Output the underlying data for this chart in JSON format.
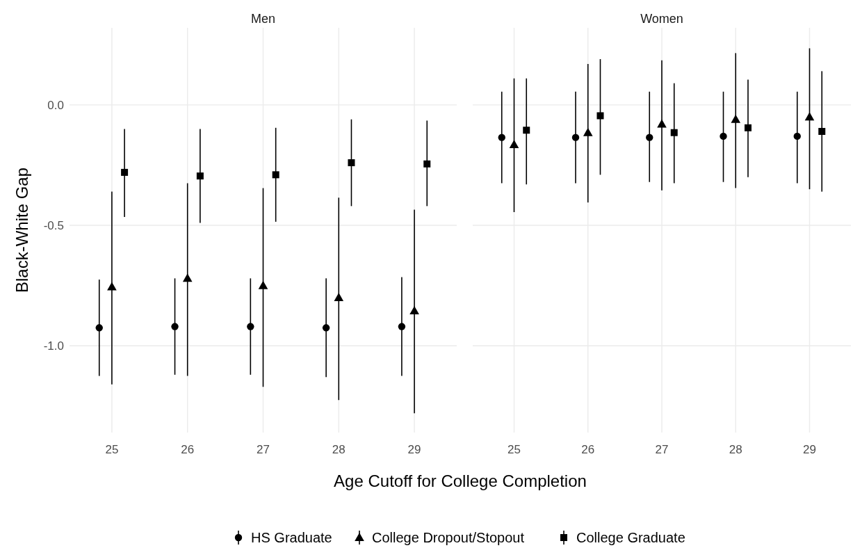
{
  "chart_data": [
    {
      "type": "scatter",
      "title": "Men",
      "ylabel": "Black-White Gap",
      "xlabel": "Age Cutoff for College Completion",
      "categories": [
        "25",
        "26",
        "27",
        "28",
        "29"
      ],
      "ylim": [
        -1.36,
        0.32
      ],
      "yticks": [
        {
          "value": -1,
          "label": "-1.0"
        },
        {
          "value": -0.5,
          "label": "-0.5"
        },
        {
          "value": 0,
          "label": "0.0"
        }
      ],
      "grid": true,
      "legend": "bottom",
      "series": [
        {
          "name": "HS Graduate",
          "color": "#000000",
          "marker": "circle",
          "values": [
            -0.925,
            -0.92,
            -0.92,
            -0.925,
            -0.92
          ],
          "errors": [
            [
              -1.125,
              -0.725
            ],
            [
              -1.12,
              -0.72
            ],
            [
              -1.12,
              -0.72
            ],
            [
              -1.13,
              -0.72
            ],
            [
              -1.125,
              -0.715
            ]
          ]
        },
        {
          "name": "College Dropout/Stopout",
          "color": "#000000",
          "marker": "triangle",
          "values": [
            -0.755,
            -0.72,
            -0.75,
            -0.8,
            -0.855
          ],
          "errors": [
            [
              -1.16,
              -0.36
            ],
            [
              -1.125,
              -0.325
            ],
            [
              -1.17,
              -0.345
            ],
            [
              -1.225,
              -0.385
            ],
            [
              -1.28,
              -0.435
            ]
          ]
        },
        {
          "name": "College Graduate",
          "color": "#000000",
          "marker": "square",
          "values": [
            -0.28,
            -0.295,
            -0.29,
            -0.24,
            -0.245
          ],
          "errors": [
            [
              -0.465,
              -0.1
            ],
            [
              -0.49,
              -0.1
            ],
            [
              -0.485,
              -0.095
            ],
            [
              -0.42,
              -0.06
            ],
            [
              -0.42,
              -0.065
            ]
          ]
        }
      ]
    },
    {
      "type": "scatter",
      "title": "Women",
      "categories": [
        "25",
        "26",
        "27",
        "28",
        "29"
      ],
      "ylim": [
        -1.36,
        0.32
      ],
      "yticks": [
        -1,
        -0.5,
        0
      ],
      "grid": true,
      "tick_labels": "x",
      "series": [
        {
          "color": "#000000",
          "marker": "circle",
          "values": [
            -0.135,
            -0.135,
            -0.135,
            -0.13,
            -0.13
          ],
          "errors": [
            [
              -0.325,
              0.055
            ],
            [
              -0.325,
              0.055
            ],
            [
              -0.32,
              0.055
            ],
            [
              -0.32,
              0.055
            ],
            [
              -0.325,
              0.055
            ]
          ]
        },
        {
          "color": "#000000",
          "marker": "triangle",
          "values": [
            -0.165,
            -0.115,
            -0.08,
            -0.06,
            -0.05
          ],
          "errors": [
            [
              -0.445,
              0.11
            ],
            [
              -0.405,
              0.17
            ],
            [
              -0.355,
              0.185
            ],
            [
              -0.345,
              0.215
            ],
            [
              -0.35,
              0.235
            ]
          ]
        },
        {
          "color": "#000000",
          "marker": "square",
          "values": [
            -0.105,
            -0.045,
            -0.115,
            -0.095,
            -0.11
          ],
          "errors": [
            [
              -0.33,
              0.11
            ],
            [
              -0.29,
              0.19
            ],
            [
              -0.325,
              0.09
            ],
            [
              -0.3,
              0.105
            ],
            [
              -0.36,
              0.14
            ]
          ]
        }
      ]
    }
  ]
}
